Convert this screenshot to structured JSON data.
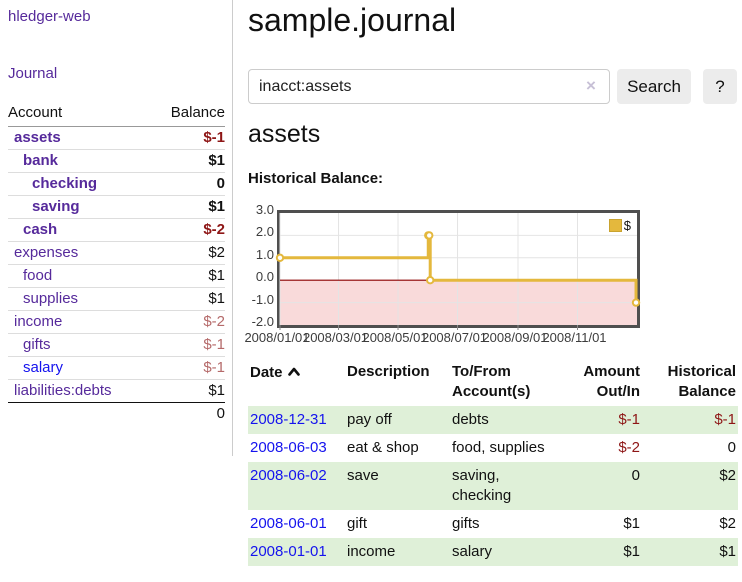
{
  "app": {
    "title": "hledger-web"
  },
  "colors": {
    "accent_purple": "#562a9b",
    "link_blue": "#1513ee",
    "negative": "#8e1616",
    "negative_muted": "#b56a6a",
    "row_green": "#dff0d8",
    "chart_line": "#e4b83d",
    "chart_negative_fill": "#f9dada",
    "chart_zero_line": "#8b0000"
  },
  "sidebar": {
    "journal_label": "Journal",
    "accounts": {
      "headers": {
        "account": "Account",
        "balance": "Balance"
      },
      "rows": [
        {
          "label": "assets",
          "balance": "$-1"
        },
        {
          "label": "bank",
          "balance": "$1"
        },
        {
          "label": "checking",
          "balance": "0"
        },
        {
          "label": "saving",
          "balance": "$1"
        },
        {
          "label": "cash",
          "balance": "$-2"
        },
        {
          "label": "expenses",
          "balance": "$2"
        },
        {
          "label": "food",
          "balance": "$1"
        },
        {
          "label": "supplies",
          "balance": "$1"
        },
        {
          "label": "income",
          "balance": "$-2"
        },
        {
          "label": "gifts",
          "balance": "$-1"
        },
        {
          "label": "salary",
          "balance": "$-1"
        },
        {
          "label": "liabilities:debts",
          "balance": "$1"
        }
      ],
      "total": "0"
    }
  },
  "main": {
    "title": "sample.journal",
    "search": {
      "value": "inacct:assets",
      "clear_icon": "×",
      "button_label": "Search",
      "help_label": "?"
    },
    "account_heading": "assets"
  },
  "chart_data": {
    "type": "line",
    "step": true,
    "title": "Historical Balance:",
    "series": [
      {
        "name": "$",
        "color": "#e4b83d",
        "points": [
          [
            "2008-01-01",
            1
          ],
          [
            "2008-06-01",
            2
          ],
          [
            "2008-06-02",
            2
          ],
          [
            "2008-06-03",
            0
          ],
          [
            "2008-12-31",
            -1
          ]
        ]
      }
    ],
    "xrange": [
      "2008-01-01",
      "2009-01-01"
    ],
    "ylim": [
      -2,
      3
    ],
    "x_ticks": [
      {
        "date": "2008-01-01",
        "label": "2008/01/01"
      },
      {
        "date": "2008-03-01",
        "label": "2008/03/01"
      },
      {
        "date": "2008-05-01",
        "label": "2008/05/01"
      },
      {
        "date": "2008-07-01",
        "label": "2008/07/01"
      },
      {
        "date": "2008-09-01",
        "label": "2008/09/01"
      },
      {
        "date": "2008-11-01",
        "label": "2008/11/01"
      }
    ],
    "y_ticks": [
      {
        "value": 3,
        "label": "3.0"
      },
      {
        "value": 2,
        "label": "2.0"
      },
      {
        "value": 1,
        "label": "1.0"
      },
      {
        "value": 0,
        "label": "0.0"
      },
      {
        "value": -1,
        "label": "-1.0"
      },
      {
        "value": -2,
        "label": "-2.0"
      }
    ],
    "legend": {
      "label": "$",
      "position": "top-right"
    },
    "grid": true,
    "zero_line_color": "#8b0000",
    "negative_region_fill": "#f9dada"
  },
  "register": {
    "headers": {
      "date": "Date",
      "description": "Description",
      "account": "To/From Account(s)",
      "amount": "Amount Out/In",
      "balance": "Historical Balance"
    },
    "rows": [
      {
        "date": "2008-12-31",
        "description": "pay off",
        "account": "debts",
        "amount": "$-1",
        "balance": "$-1"
      },
      {
        "date": "2008-06-03",
        "description": "eat & shop",
        "account": "food, supplies",
        "amount": "$-2",
        "balance": "0"
      },
      {
        "date": "2008-06-02",
        "description": "save",
        "account": "saving, checking",
        "amount": "0",
        "balance": "$2"
      },
      {
        "date": "2008-06-01",
        "description": "gift",
        "account": "gifts",
        "amount": "$1",
        "balance": "$2"
      },
      {
        "date": "2008-01-01",
        "description": "income",
        "account": "salary",
        "amount": "$1",
        "balance": "$1"
      }
    ]
  }
}
